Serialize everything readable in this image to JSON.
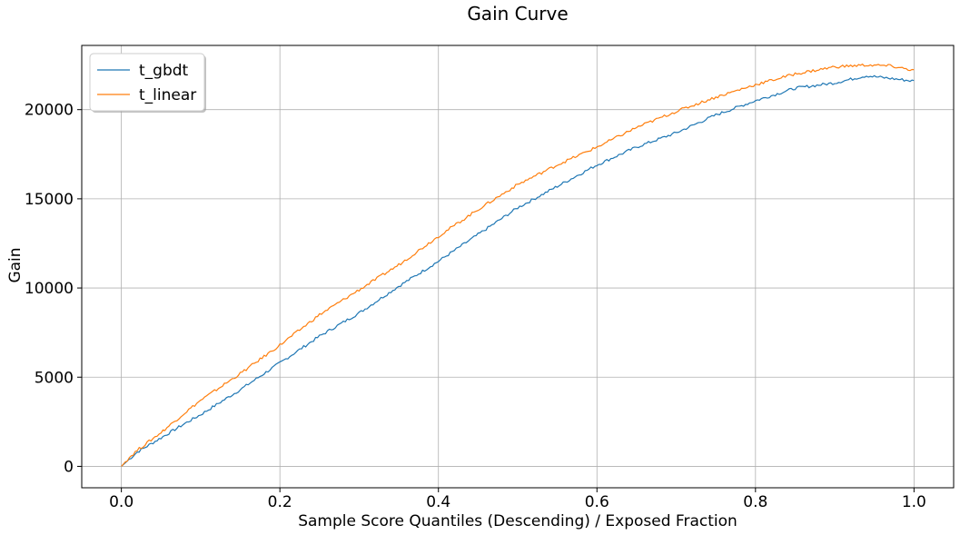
{
  "chart_data": {
    "type": "line",
    "title": "Gain Curve",
    "xlabel": "Sample Score Quantiles (Descending) / Exposed Fraction",
    "ylabel": "Gain",
    "xlim": [
      -0.05,
      1.05
    ],
    "ylim": [
      -1200,
      23600
    ],
    "xticks": [
      0.0,
      0.2,
      0.4,
      0.6,
      0.8,
      1.0
    ],
    "xtick_labels": [
      "0.0",
      "0.2",
      "0.4",
      "0.6",
      "0.8",
      "1.0"
    ],
    "yticks": [
      0,
      5000,
      10000,
      15000,
      20000
    ],
    "ytick_labels": [
      "0",
      "5000",
      "10000",
      "15000",
      "20000"
    ],
    "grid": true,
    "legend_position": "top-left",
    "series": [
      {
        "name": "t_gbdt",
        "color": "#1f77b4",
        "x": [
          0.0,
          0.01,
          0.02,
          0.05,
          0.08,
          0.1,
          0.15,
          0.2,
          0.25,
          0.3,
          0.35,
          0.4,
          0.45,
          0.5,
          0.55,
          0.6,
          0.65,
          0.7,
          0.75,
          0.8,
          0.85,
          0.9,
          0.94,
          0.97,
          1.0
        ],
        "y": [
          0,
          400,
          800,
          1600,
          2400,
          2900,
          4300,
          5800,
          7300,
          8600,
          10100,
          11500,
          13000,
          14500,
          15700,
          16900,
          17900,
          18700,
          19700,
          20500,
          21200,
          21500,
          21900,
          21750,
          21600
        ]
      },
      {
        "name": "t_linear",
        "color": "#ff7f0e",
        "x": [
          0.0,
          0.01,
          0.02,
          0.05,
          0.08,
          0.1,
          0.15,
          0.2,
          0.25,
          0.3,
          0.35,
          0.4,
          0.45,
          0.5,
          0.55,
          0.6,
          0.65,
          0.7,
          0.75,
          0.8,
          0.85,
          0.9,
          0.94,
          0.97,
          1.0
        ],
        "y": [
          0,
          500,
          900,
          1900,
          3000,
          3700,
          5200,
          6800,
          8500,
          9900,
          11300,
          12900,
          14400,
          15800,
          16900,
          17900,
          19000,
          19900,
          20700,
          21400,
          22000,
          22400,
          22500,
          22450,
          22200
        ]
      }
    ]
  },
  "colors": {
    "background": "#ffffff",
    "grid": "#b0b0b0",
    "axis": "#000000"
  }
}
